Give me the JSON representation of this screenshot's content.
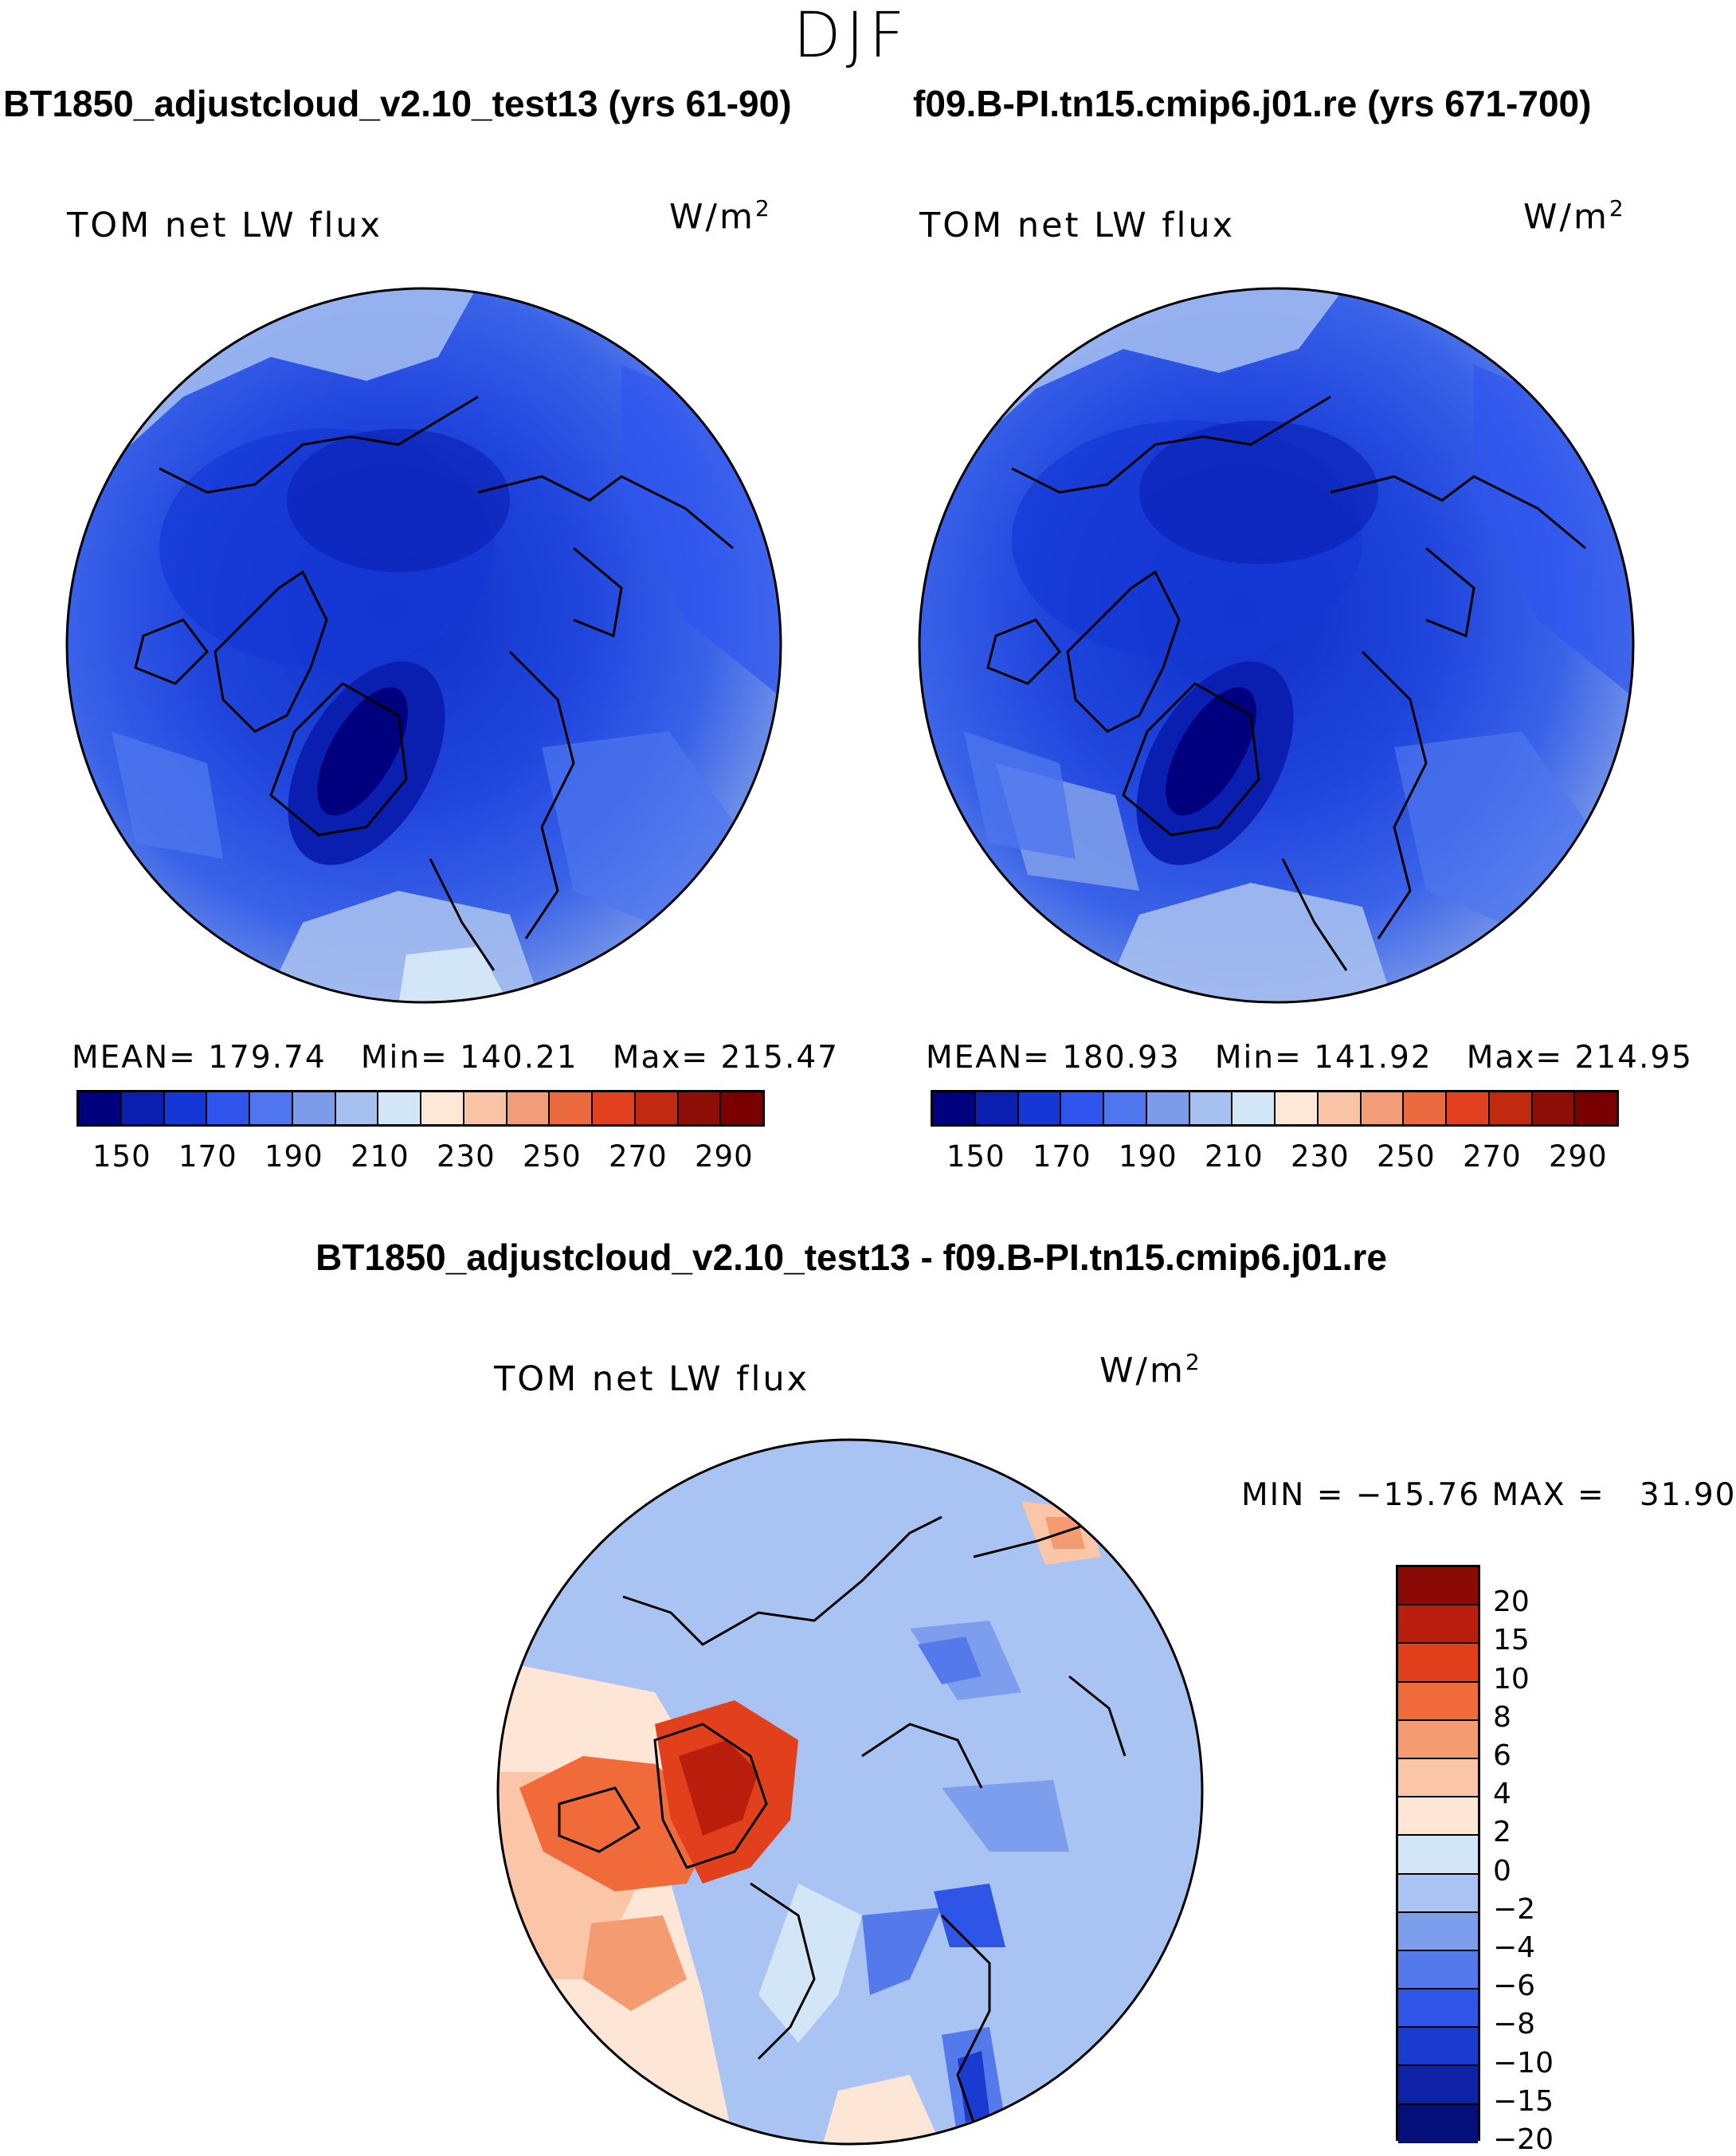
{
  "season": "DJF",
  "left_panel": {
    "header": "BT1850_adjustcloud_v2.10_test13 (yrs 61-90)",
    "label": "TOM net LW flux",
    "units": "W/m",
    "units_exp": "2",
    "stats": "MEAN= 179.74   Min= 140.21   Max= 215.47",
    "mean": 179.74,
    "min": 140.21,
    "max": 215.47
  },
  "right_panel": {
    "header": "f09.B-PI.tn15.cmip6.j01.re (yrs 671-700)",
    "label": "TOM net LW flux",
    "units": "W/m",
    "units_exp": "2",
    "stats": "MEAN= 180.93   Min= 141.92   Max= 214.95",
    "mean": 180.93,
    "min": 141.92,
    "max": 214.95
  },
  "diff_panel": {
    "header": "BT1850_adjustcloud_v2.10_test13 - f09.B-PI.tn15.cmip6.j01.re",
    "label": "TOM net LW flux",
    "units": "W/m",
    "units_exp": "2",
    "stats": "MIN = −15.76 MAX =   31.90",
    "min": -15.76,
    "max": 31.9
  },
  "abs_colorbar": {
    "colors": [
      "#00007f",
      "#0a1fb0",
      "#1537d6",
      "#2f55ee",
      "#4f76ee",
      "#7c9ce9",
      "#a6c0f0",
      "#d3e6f7",
      "#fde8d8",
      "#f9c4a6",
      "#f29d77",
      "#ec6a40",
      "#e2401f",
      "#c22a10",
      "#8c0e06",
      "#7a0000"
    ],
    "ticks": [
      "150",
      "170",
      "190",
      "210",
      "230",
      "250",
      "270",
      "290"
    ]
  },
  "diff_colorbar": {
    "colors": [
      "#8c0a05",
      "#b91e0c",
      "#e2401c",
      "#f06a3a",
      "#f59b72",
      "#fac6a7",
      "#fde6d6",
      "#d3e6f7",
      "#a9c3f2",
      "#7d9eec",
      "#5479ea",
      "#2f55e6",
      "#1a3bd0",
      "#0e22a8",
      "#050f7a"
    ],
    "ticks": [
      "20",
      "15",
      "10",
      "8",
      "6",
      "4",
      "2",
      "0",
      "−2",
      "−4",
      "−6",
      "−8",
      "−10",
      "−15",
      "−20"
    ]
  },
  "chart_data": {
    "type": "heatmap",
    "title": "DJF",
    "variable": "TOM net LW flux",
    "units": "W/m2",
    "projection": "north polar stereographic",
    "panels": [
      {
        "name": "BT1850_adjustcloud_v2.10_test13 (yrs 61-90)",
        "mean": 179.74,
        "min": 140.21,
        "max": 215.47,
        "levels": [
          150,
          170,
          190,
          210,
          230,
          250,
          270,
          290
        ]
      },
      {
        "name": "f09.B-PI.tn15.cmip6.j01.re (yrs 671-700)",
        "mean": 180.93,
        "min": 141.92,
        "max": 214.95,
        "levels": [
          150,
          170,
          190,
          210,
          230,
          250,
          270,
          290
        ]
      },
      {
        "name": "BT1850_adjustcloud_v2.10_test13 - f09.B-PI.tn15.cmip6.j01.re",
        "min": -15.76,
        "max": 31.9,
        "levels": [
          -20,
          -15,
          -10,
          -8,
          -6,
          -4,
          -2,
          0,
          2,
          4,
          6,
          8,
          10,
          15,
          20
        ]
      }
    ]
  }
}
